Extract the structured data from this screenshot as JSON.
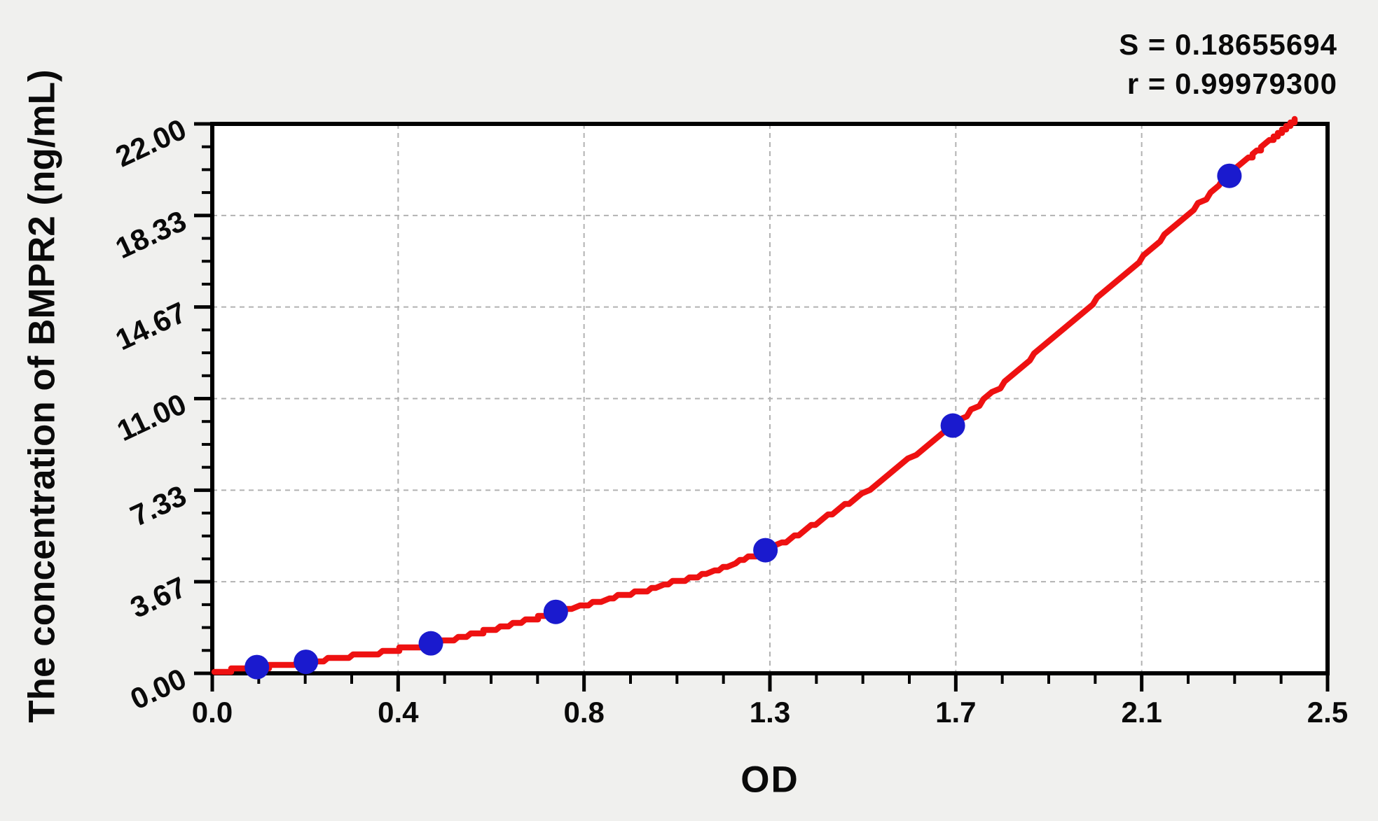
{
  "chart_data": {
    "type": "scatter",
    "title": "",
    "xlabel": "OD",
    "ylabel": "The concentration of BMPR2 (ng/mL)",
    "xlim": [
      0,
      2.5
    ],
    "ylim": [
      0,
      22
    ],
    "grid": "dashed at major ticks",
    "legend": "none",
    "annotations": [
      "S = 0.18655694",
      "r = 0.99979300"
    ],
    "x_ticks": {
      "labels": [
        "0.0",
        "0.4",
        "0.8",
        "1.3",
        "1.7",
        "2.1",
        "2.5"
      ],
      "values": [
        0,
        0.417,
        0.833,
        1.25,
        1.667,
        2.083,
        2.5
      ],
      "minor_divisions": 4
    },
    "y_ticks": {
      "labels": [
        "0.00",
        "3.67",
        "7.33",
        "11.00",
        "14.67",
        "18.33",
        "22.00"
      ],
      "values": [
        0,
        3.67,
        7.33,
        11.0,
        14.67,
        18.33,
        22.0
      ],
      "minor_divisions": 4
    },
    "series": [
      {
        "name": "standard-points",
        "type": "scatter",
        "color": "#1a1ace",
        "x": [
          0.1,
          0.21,
          0.49,
          0.77,
          1.24,
          1.66,
          2.28
        ],
        "y": [
          0.25,
          0.46,
          1.2,
          2.46,
          4.93,
          9.92,
          19.92
        ]
      },
      {
        "name": "fitted-curve",
        "type": "line",
        "color": "#ee1111",
        "x": [
          0,
          0.1,
          0.21,
          0.49,
          0.77,
          1.24,
          1.66,
          2.28,
          2.43
        ],
        "y": [
          0.06,
          0.22,
          0.45,
          1.18,
          2.44,
          4.93,
          9.92,
          19.92,
          22.15
        ]
      }
    ]
  },
  "colors": {
    "background": "#f0f0ee",
    "plot_background": "#ffffff",
    "axis": "#000000",
    "gridline": "#b2b2b2",
    "curve": "#ee1111",
    "points": "#1a1ace"
  }
}
